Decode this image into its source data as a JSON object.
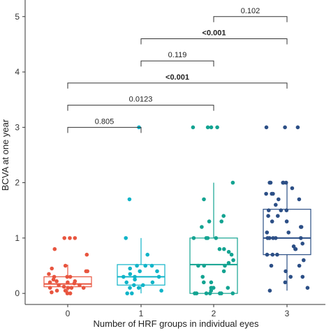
{
  "chart_data": {
    "type": "boxplot",
    "xlabel": "Number of HRF groups in individual eyes",
    "ylabel": "BCVA at one year",
    "categories": [
      "0",
      "1",
      "2",
      "3"
    ],
    "yticks": [
      "0",
      "1",
      "2",
      "3",
      "4",
      "5"
    ],
    "ylim": [
      -0.2,
      5.3
    ],
    "grid": false,
    "legend": "none",
    "colors": [
      "#e8553f",
      "#10b4c8",
      "#13a391",
      "#2c4f86"
    ],
    "boxes": [
      {
        "category": "0",
        "q1": 0.12,
        "median": 0.17,
        "q3": 0.3,
        "whisker_low": 0.0,
        "whisker_high": 0.52,
        "points": [
          0.0,
          0.0,
          0.02,
          0.05,
          0.05,
          0.1,
          0.1,
          0.1,
          0.1,
          0.12,
          0.15,
          0.15,
          0.18,
          0.2,
          0.2,
          0.22,
          0.22,
          0.25,
          0.3,
          0.3,
          0.3,
          0.35,
          0.4,
          0.4,
          0.45,
          0.5,
          0.7,
          0.8,
          1.0,
          1.0,
          1.0
        ]
      },
      {
        "category": "1",
        "q1": 0.15,
        "median": 0.3,
        "q3": 0.52,
        "whisker_low": 0.0,
        "whisker_high": 1.0,
        "points": [
          0.0,
          0.0,
          0.05,
          0.1,
          0.1,
          0.15,
          0.15,
          0.2,
          0.2,
          0.25,
          0.3,
          0.3,
          0.3,
          0.35,
          0.4,
          0.4,
          0.45,
          0.5,
          0.5,
          0.5,
          0.7,
          1.0,
          1.7,
          3.0
        ]
      },
      {
        "category": "2",
        "q1": 0.0,
        "median": 0.52,
        "q3": 1.0,
        "whisker_low": 0.0,
        "whisker_high": 2.0,
        "points": [
          0.0,
          0.0,
          0.0,
          0.0,
          0.0,
          0.0,
          0.0,
          0.05,
          0.1,
          0.1,
          0.1,
          0.1,
          0.2,
          0.2,
          0.3,
          0.4,
          0.5,
          0.5,
          0.5,
          0.55,
          0.6,
          0.7,
          0.75,
          0.8,
          0.8,
          1.0,
          1.0,
          1.0,
          1.0,
          1.2,
          1.3,
          1.3,
          1.4,
          1.7,
          2.0,
          3.0,
          3.0,
          3.0,
          3.0
        ]
      },
      {
        "category": "3",
        "q1": 0.7,
        "median": 1.0,
        "q3": 1.52,
        "whisker_low": 0.05,
        "whisker_high": 2.0,
        "points": [
          0.05,
          0.1,
          0.2,
          0.3,
          0.3,
          0.4,
          0.5,
          0.5,
          0.6,
          0.7,
          0.7,
          0.7,
          0.8,
          0.8,
          0.85,
          0.9,
          1.0,
          1.0,
          1.0,
          1.0,
          1.0,
          1.1,
          1.1,
          1.2,
          1.2,
          1.3,
          1.3,
          1.4,
          1.4,
          1.5,
          1.5,
          1.5,
          1.6,
          1.7,
          1.7,
          1.8,
          1.8,
          1.8,
          1.9,
          2.0,
          2.0,
          2.0,
          2.0,
          2.0,
          3.0,
          3.0,
          3.0
        ]
      }
    ],
    "annotations": [
      {
        "from": "0",
        "to": "1",
        "y": 3.0,
        "label": "0.805",
        "bold": false
      },
      {
        "from": "0",
        "to": "2",
        "y": 3.4,
        "label": "0.0123",
        "bold": false
      },
      {
        "from": "0",
        "to": "3",
        "y": 3.8,
        "label": "<0.001",
        "bold": true
      },
      {
        "from": "1",
        "to": "2",
        "y": 4.2,
        "label": "0.119",
        "bold": false
      },
      {
        "from": "1",
        "to": "3",
        "y": 4.6,
        "label": "<0.001",
        "bold": true
      },
      {
        "from": "2",
        "to": "3",
        "y": 5.0,
        "label": "0.102",
        "bold": false
      }
    ]
  }
}
